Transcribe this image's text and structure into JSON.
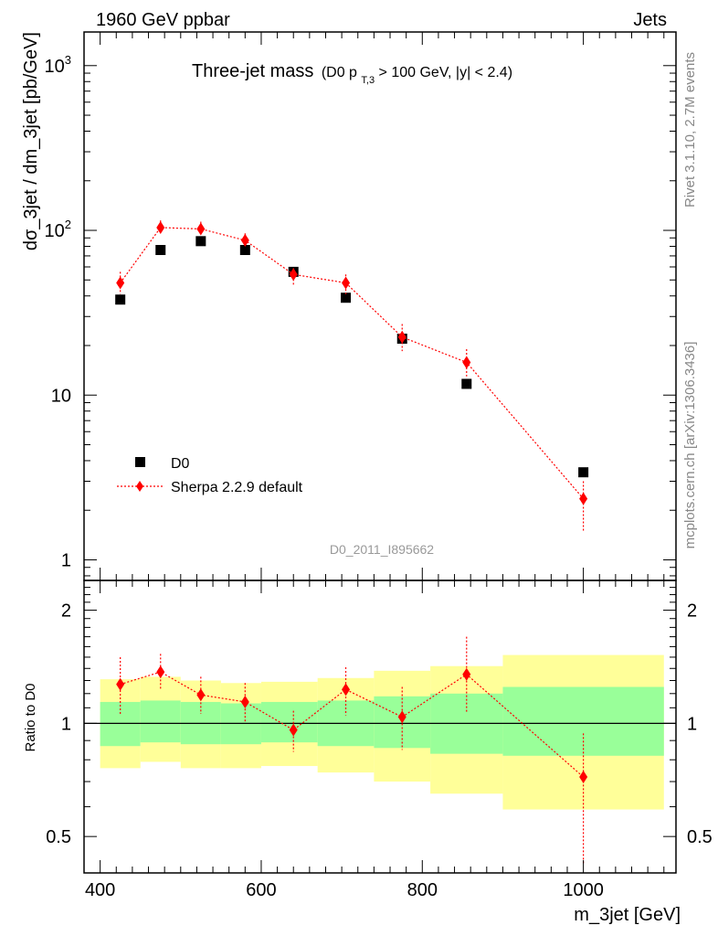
{
  "header": {
    "left_label": "1960 GeV ppbar",
    "right_label": "Jets",
    "side_label_top": "Rivet 3.1.10,  2.7M events",
    "side_label_bottom": "mcplots.cern.ch [arXiv:1306.3436]"
  },
  "chart_data": [
    {
      "type": "scatter",
      "panel": "main",
      "title": "Three-jet mass",
      "title_sub": "(D0 p",
      "title_sub_index": "T,3",
      "title_sub_rest": " > 100 GeV, |y| < 2.4)",
      "ylabel": "dσ_3jet / dm_3jet [pb/GeV]",
      "xlabel": "m_3jet [GeV]",
      "yscale": "log",
      "ylim": [
        0.75,
        1600
      ],
      "xlim": [
        380,
        1115
      ],
      "y_tick_labels": [
        "1",
        "10",
        "10",
        "10"
      ],
      "y_tick_exponents": [
        "",
        "",
        "2",
        "3"
      ],
      "watermark": "D0_2011_I895662",
      "legend": {
        "placement": "bottom-left",
        "entries": [
          "D0",
          "Sherpa 2.2.9 default"
        ]
      },
      "series": [
        {
          "name": "D0",
          "marker": "square",
          "color": "#000000",
          "x": [
            425,
            475,
            525,
            580,
            640,
            705,
            775,
            855,
            1000
          ],
          "y": [
            38,
            76,
            86,
            76,
            56,
            39,
            22,
            11.7,
            3.4
          ]
        },
        {
          "name": "Sherpa 2.2.9 default",
          "marker": "diamond",
          "color": "#ff0000",
          "x": [
            425,
            475,
            525,
            580,
            640,
            705,
            775,
            855,
            1000
          ],
          "y": [
            48,
            104,
            102,
            87,
            54,
            48,
            22.5,
            15.8,
            2.35
          ],
          "y_low": [
            41,
            95,
            93,
            80,
            46,
            41,
            18.5,
            13,
            1.5
          ],
          "y_high": [
            56,
            115,
            113,
            96,
            59,
            54,
            27,
            19,
            3.0
          ]
        }
      ]
    },
    {
      "type": "scatter",
      "panel": "ratio",
      "ylabel": "Ratio to D0",
      "xlabel": "m_3jet [GeV]",
      "yscale": "log",
      "ylim": [
        0.4,
        2.4
      ],
      "xlim": [
        380,
        1115
      ],
      "x_ticks": [
        400,
        600,
        800,
        1000
      ],
      "x_tick_labels": [
        "400",
        "600",
        "800",
        "1000"
      ],
      "y_tick_labels": [
        "0.5",
        "1",
        "2"
      ],
      "reference_line": 1,
      "bands": {
        "edges": [
          400,
          450,
          500,
          550,
          600,
          670,
          740,
          810,
          900,
          1100
        ],
        "inner_low": [
          0.87,
          0.89,
          0.88,
          0.88,
          0.89,
          0.87,
          0.86,
          0.83,
          0.82
        ],
        "inner_high": [
          1.14,
          1.15,
          1.14,
          1.13,
          1.14,
          1.15,
          1.18,
          1.2,
          1.25
        ],
        "outer_low": [
          0.76,
          0.79,
          0.76,
          0.76,
          0.77,
          0.74,
          0.7,
          0.65,
          0.59
        ],
        "outer_high": [
          1.31,
          1.33,
          1.3,
          1.28,
          1.29,
          1.32,
          1.38,
          1.42,
          1.52
        ]
      },
      "series": [
        {
          "name": "Sherpa 2.2.9 default",
          "marker": "diamond",
          "color": "#ff0000",
          "x": [
            425,
            475,
            525,
            580,
            640,
            705,
            775,
            855,
            1000
          ],
          "y": [
            1.27,
            1.37,
            1.19,
            1.14,
            0.96,
            1.23,
            1.04,
            1.35,
            0.72
          ],
          "y_low": [
            1.06,
            1.23,
            1.06,
            1.01,
            0.84,
            1.05,
            0.85,
            1.07,
            0.42
          ],
          "y_high": [
            1.5,
            1.53,
            1.33,
            1.28,
            1.08,
            1.41,
            1.25,
            1.7,
            0.94
          ]
        }
      ]
    }
  ]
}
